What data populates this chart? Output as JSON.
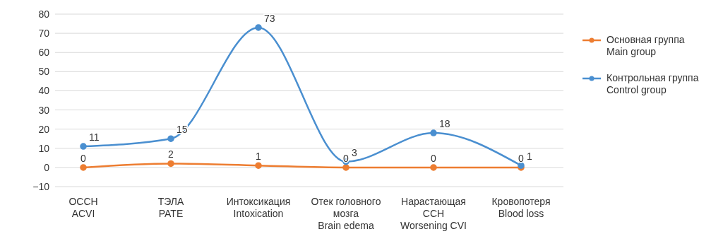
{
  "chart_data": {
    "type": "line",
    "categories": [
      "ОССН\nACVI",
      "ТЭЛА\nPATE",
      "Интоксикация\nIntoxication",
      "Отек головного\nмозга\nBrain edema",
      "Нарастающая\nССН\nWorsening CVI",
      "Кровопотеря\nBlood loss"
    ],
    "series": [
      {
        "name": "Основная группа\nMain group",
        "color": "#ed7d31",
        "values": [
          0,
          2,
          1,
          0,
          0,
          0
        ]
      },
      {
        "name": "Контрольная группа\nControl group",
        "color": "#4a8fd0",
        "values": [
          11,
          15,
          73,
          3,
          18,
          1
        ]
      }
    ],
    "ylim": [
      -10,
      80
    ],
    "yticks": [
      -10,
      0,
      10,
      20,
      30,
      40,
      50,
      60,
      70,
      80
    ],
    "grid": "y",
    "legend": "right",
    "marker": "circle",
    "line_style": "solid",
    "data_labels": true
  }
}
